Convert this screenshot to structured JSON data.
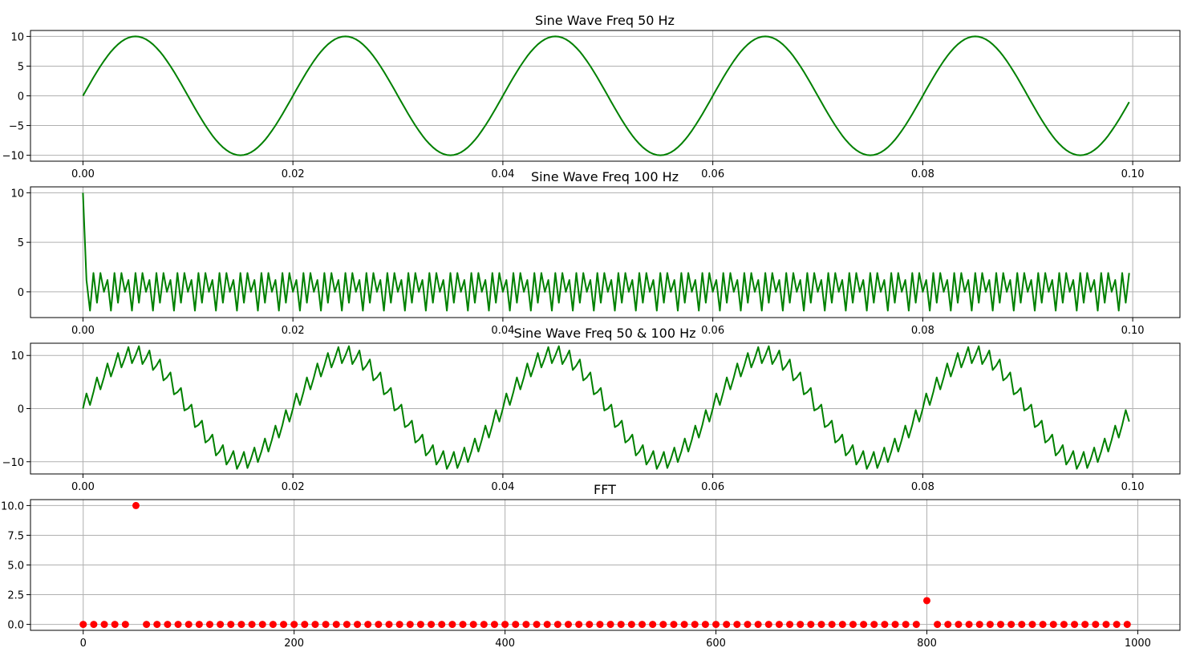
{
  "chart_data": [
    {
      "type": "line",
      "title": "Sine Wave Freq 50 Hz",
      "signal": "sin50",
      "amplitude": 10,
      "frequency_hz": 50,
      "sample_rate_hz": 1000,
      "x_range": [
        0,
        0.1
      ],
      "xlim": [
        -0.005,
        0.1045
      ],
      "ylim": [
        -11,
        11
      ],
      "color": "#008000",
      "xticks": [
        0.0,
        0.02,
        0.04,
        0.06,
        0.08,
        0.1
      ],
      "xtick_labels": [
        "0.00",
        "0.02",
        "0.04",
        "0.06",
        "0.08",
        "0.10"
      ],
      "yticks": [
        10,
        5,
        0,
        -5,
        -10
      ],
      "ytick_labels": [
        "10",
        "5",
        "0",
        "−5",
        "−10"
      ],
      "grid": true
    },
    {
      "type": "line",
      "title": "Sine Wave Freq 100 Hz",
      "signal": "sin100",
      "frequency_hz": 100,
      "sample_rate_hz": 1000,
      "x_range": [
        0,
        0.1
      ],
      "xlim": [
        -0.005,
        0.1045
      ],
      "ylim": [
        -2.6,
        10.6
      ],
      "color": "#008000",
      "xticks": [
        0.0,
        0.02,
        0.04,
        0.06,
        0.08,
        0.1
      ],
      "xtick_labels": [
        "0.00",
        "0.02",
        "0.04",
        "0.06",
        "0.08",
        "0.10"
      ],
      "yticks": [
        10,
        5,
        0
      ],
      "ytick_labels": [
        "10",
        "5",
        "0"
      ],
      "grid": true
    },
    {
      "type": "line",
      "title": "Sine Wave Freq 50 & 100 Hz",
      "signal": "sum",
      "x_range": [
        0,
        0.1
      ],
      "xlim": [
        -0.005,
        0.1045
      ],
      "ylim": [
        -12.3,
        12.3
      ],
      "color": "#008000",
      "xticks": [
        0.0,
        0.02,
        0.04,
        0.06,
        0.08,
        0.1
      ],
      "xtick_labels": [
        "0.00",
        "0.02",
        "0.04",
        "0.06",
        "0.08",
        "0.10"
      ],
      "yticks": [
        10,
        0,
        -10
      ],
      "ytick_labels": [
        "10",
        "0",
        "−10"
      ],
      "grid": true
    },
    {
      "type": "scatter",
      "title": "FFT",
      "marker_color": "#ff0000",
      "x_range": [
        0,
        990
      ],
      "x_step": 10,
      "peaks": [
        {
          "x": 50,
          "y": 10.0
        },
        {
          "x": 800,
          "y": 2.0
        }
      ],
      "baseline": 0,
      "xlim": [
        -50,
        1040
      ],
      "ylim": [
        -0.5,
        10.5
      ],
      "xticks": [
        0,
        200,
        400,
        600,
        800,
        1000
      ],
      "xtick_labels": [
        "0",
        "200",
        "400",
        "600",
        "800",
        "1000"
      ],
      "yticks": [
        10.0,
        7.5,
        5.0,
        2.5,
        0.0
      ],
      "ytick_labels": [
        "10.0",
        "7.5",
        "5.0",
        "2.5",
        "0.0"
      ],
      "grid": true
    }
  ]
}
